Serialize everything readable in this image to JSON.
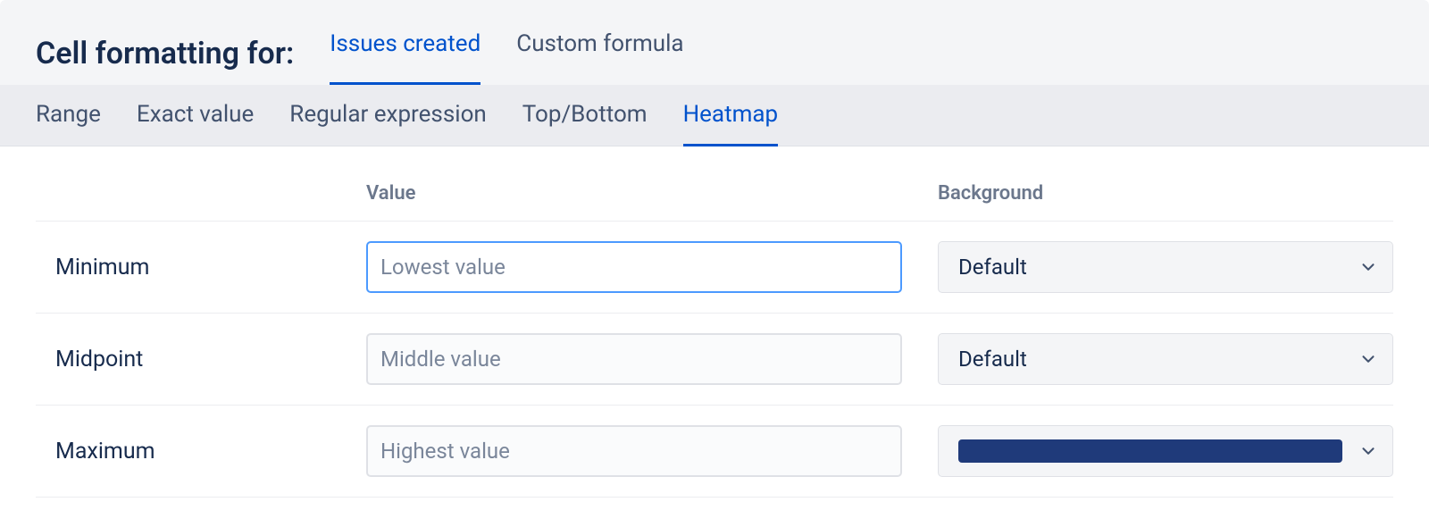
{
  "header": {
    "title": "Cell formatting for:",
    "column_tabs": [
      {
        "label": "Issues created",
        "active": true
      },
      {
        "label": "Custom formula",
        "active": false
      }
    ],
    "rule_tabs": [
      {
        "label": "Range",
        "active": false
      },
      {
        "label": "Exact value",
        "active": false
      },
      {
        "label": "Regular expression",
        "active": false
      },
      {
        "label": "Top/Bottom",
        "active": false
      },
      {
        "label": "Heatmap",
        "active": true
      }
    ]
  },
  "columns": {
    "label": "",
    "value": "Value",
    "background": "Background"
  },
  "rows": [
    {
      "key": "minimum",
      "label": "Minimum",
      "value_placeholder": "Lowest value",
      "value": "",
      "focused": true,
      "background_kind": "default",
      "background_label": "Default",
      "background_color": null
    },
    {
      "key": "midpoint",
      "label": "Midpoint",
      "value_placeholder": "Middle value",
      "value": "",
      "focused": false,
      "background_kind": "default",
      "background_label": "Default",
      "background_color": null
    },
    {
      "key": "maximum",
      "label": "Maximum",
      "value_placeholder": "Highest value",
      "value": "",
      "focused": false,
      "background_kind": "swatch",
      "background_label": "",
      "background_color": "#1f3a7a"
    }
  ],
  "colors": {
    "accent": "#0052cc",
    "focus_ring": "#4c9aff",
    "header_bg": "#f4f5f7",
    "subtab_bg": "#ebecf0",
    "border": "#dfe1e6",
    "text_primary": "#172b4d",
    "text_muted": "#6b778c",
    "placeholder": "#7a869a"
  }
}
